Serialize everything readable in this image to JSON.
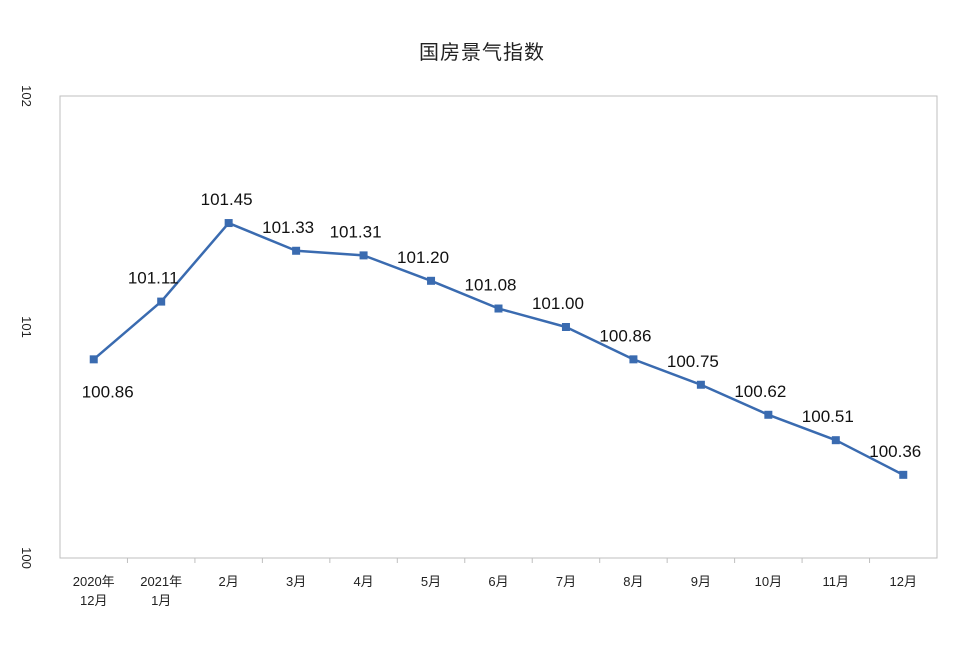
{
  "chart_data": {
    "type": "line",
    "title": "国房景气指数",
    "xlabel": "",
    "ylabel": "",
    "ylim": [
      100,
      102
    ],
    "yticks": [
      100,
      101,
      102
    ],
    "grid": false,
    "legend": "none",
    "categories": [
      [
        "2020年",
        "12月"
      ],
      [
        "2021年",
        "1月"
      ],
      [
        "2月"
      ],
      [
        "3月"
      ],
      [
        "4月"
      ],
      [
        "5月"
      ],
      [
        "6月"
      ],
      [
        "7月"
      ],
      [
        "8月"
      ],
      [
        "9月"
      ],
      [
        "10月"
      ],
      [
        "11月"
      ],
      [
        "12月"
      ]
    ],
    "series": [
      {
        "values": [
          100.86,
          101.11,
          101.45,
          101.33,
          101.31,
          101.2,
          101.08,
          101.0,
          100.86,
          100.75,
          100.62,
          100.51,
          100.36
        ],
        "labels": [
          "100.86",
          "101.11",
          "101.45",
          "101.33",
          "101.31",
          "101.20",
          "101.08",
          "101.00",
          "100.86",
          "100.75",
          "100.62",
          "100.51",
          "100.36"
        ],
        "color": "#3a6bb0"
      }
    ]
  }
}
